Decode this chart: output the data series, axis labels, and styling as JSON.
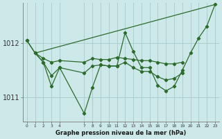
{
  "background_color": "#cce8e8",
  "grid_color": "#aacfcf",
  "line_color": "#2d6a2d",
  "xlabel": "Graphe pression niveau de la mer (hPa)",
  "x_ticks": [
    0,
    1,
    2,
    3,
    4,
    7,
    8,
    9,
    10,
    11,
    12,
    13,
    14,
    15,
    16,
    17,
    18,
    19,
    20,
    21,
    22,
    23
  ],
  "ylim": [
    1010.55,
    1012.75
  ],
  "yticks": [
    1011,
    1012
  ],
  "series_main": {
    "x": [
      0,
      1,
      2,
      3,
      4,
      7,
      8,
      9,
      10,
      11,
      12,
      13,
      14,
      15,
      16,
      17,
      18,
      19,
      20,
      21,
      22,
      23
    ],
    "y": [
      1012.05,
      1011.82,
      1011.65,
      1011.2,
      1011.55,
      1010.7,
      1011.18,
      1011.6,
      1011.58,
      1011.58,
      1012.2,
      1011.85,
      1011.55,
      1011.55,
      1011.22,
      1011.12,
      1011.2,
      1011.5,
      1011.82,
      1012.1,
      1012.32,
      1012.72
    ]
  },
  "series_flat": {
    "x": [
      0,
      1,
      2,
      3,
      4,
      7,
      8,
      9,
      10,
      11,
      12,
      13,
      14,
      15,
      16,
      17,
      18,
      19
    ],
    "y": [
      1012.05,
      1011.82,
      1011.72,
      1011.65,
      1011.68,
      1011.65,
      1011.72,
      1011.7,
      1011.7,
      1011.74,
      1011.72,
      1011.7,
      1011.68,
      1011.68,
      1011.65,
      1011.62,
      1011.62,
      1011.65
    ]
  },
  "series_lower": {
    "x": [
      1,
      2,
      3,
      4,
      7,
      8,
      9,
      10,
      11,
      12,
      13,
      14,
      15,
      16,
      17,
      18,
      19
    ],
    "y": [
      1011.82,
      1011.65,
      1011.4,
      1011.55,
      1011.45,
      1011.58,
      1011.6,
      1011.58,
      1011.58,
      1011.65,
      1011.55,
      1011.48,
      1011.48,
      1011.38,
      1011.32,
      1011.35,
      1011.45
    ]
  },
  "series_trend": {
    "x": [
      1,
      23
    ],
    "y": [
      1011.82,
      1012.72
    ]
  }
}
